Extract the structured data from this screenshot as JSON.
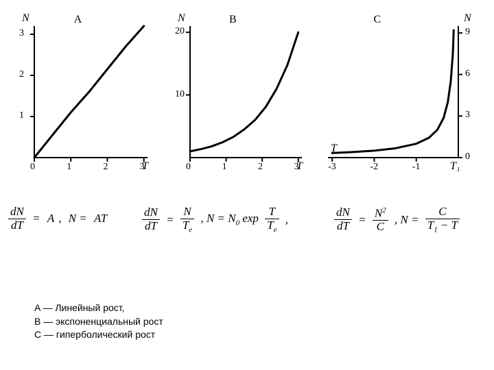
{
  "charts": {
    "A": {
      "type": "line",
      "title": "A",
      "y_axis_label": "N",
      "x_axis_label": "T",
      "x_ticks": [
        {
          "v": 0,
          "l": "0"
        },
        {
          "v": 1,
          "l": "1"
        },
        {
          "v": 2,
          "l": "2"
        },
        {
          "v": 3,
          "l": "3"
        }
      ],
      "y_ticks": [
        {
          "v": 1,
          "l": "1"
        },
        {
          "v": 2,
          "l": "2"
        },
        {
          "v": 3,
          "l": "3"
        }
      ],
      "xlim": [
        0,
        3.1
      ],
      "ylim": [
        0,
        3.2
      ],
      "curve_color": "#000000",
      "line_width": 3,
      "tick_len": 6,
      "axis_width": 2,
      "points": [
        [
          0,
          0
        ],
        [
          0.5,
          0.55
        ],
        [
          1,
          1.1
        ],
        [
          1.5,
          1.6
        ],
        [
          2,
          2.15
        ],
        [
          2.5,
          2.7
        ],
        [
          3,
          3.2
        ]
      ]
    },
    "B": {
      "type": "line",
      "title": "B",
      "y_axis_label": "N",
      "x_axis_label": "T",
      "x_ticks": [
        {
          "v": 0,
          "l": "0"
        },
        {
          "v": 1,
          "l": "1"
        },
        {
          "v": 2,
          "l": "2"
        },
        {
          "v": 3,
          "l": "3"
        }
      ],
      "y_ticks": [
        {
          "v": 10,
          "l": "10"
        },
        {
          "v": 20,
          "l": "20"
        }
      ],
      "xlim": [
        0,
        3.1
      ],
      "ylim": [
        0,
        21
      ],
      "curve_color": "#000000",
      "line_width": 3,
      "tick_len": 6,
      "axis_width": 2,
      "points": [
        [
          0,
          1
        ],
        [
          0.3,
          1.35
        ],
        [
          0.6,
          1.8
        ],
        [
          0.9,
          2.45
        ],
        [
          1.2,
          3.3
        ],
        [
          1.5,
          4.5
        ],
        [
          1.8,
          6.0
        ],
        [
          2.1,
          8.1
        ],
        [
          2.4,
          11
        ],
        [
          2.7,
          14.8
        ],
        [
          3.0,
          20
        ]
      ]
    },
    "C": {
      "type": "line",
      "title": "C",
      "y_axis_label": "N",
      "x_axis_label_top": "T",
      "x_axis_label_bottom": "T₁",
      "x_ticks": [
        {
          "v": -3,
          "l": "-3"
        },
        {
          "v": -2,
          "l": "-2"
        },
        {
          "v": -1,
          "l": "-1"
        }
      ],
      "y_ticks": [
        {
          "v": 0,
          "l": "0"
        },
        {
          "v": 3,
          "l": "3"
        },
        {
          "v": 6,
          "l": "6"
        },
        {
          "v": 9,
          "l": "9"
        }
      ],
      "xlim": [
        -3.1,
        0
      ],
      "ylim": [
        0,
        9.5
      ],
      "curve_color": "#000000",
      "line_width": 3,
      "tick_len": 6,
      "axis_width": 2,
      "points": [
        [
          -3.0,
          0.33
        ],
        [
          -2.5,
          0.4
        ],
        [
          -2.0,
          0.5
        ],
        [
          -1.5,
          0.67
        ],
        [
          -1.0,
          1.0
        ],
        [
          -0.7,
          1.43
        ],
        [
          -0.5,
          2.0
        ],
        [
          -0.35,
          2.86
        ],
        [
          -0.25,
          4.0
        ],
        [
          -0.18,
          5.5
        ],
        [
          -0.13,
          7.5
        ],
        [
          -0.11,
          9.2
        ]
      ]
    }
  },
  "equations": {
    "A": {
      "lhs_num": "dN",
      "lhs_den": "dT",
      "rhs1": "A",
      "rhs2_pre": "N =",
      "rhs2": "AT"
    },
    "B": {
      "lhs_num": "dN",
      "lhs_den": "dT",
      "mid_num": "N",
      "mid_den_pre": "T",
      "mid_den_sub": "e",
      "sep": ", N = N",
      "n0_sub": "0",
      "exp": " exp",
      "exp_num": "T",
      "exp_den_pre": "T",
      "exp_den_sub": "e",
      "trail": ","
    },
    "C": {
      "lhs_num": "dN",
      "lhs_den": "dT",
      "mid_num_pre": "N",
      "mid_num_sup": "2",
      "mid_den": "C",
      "sep": ", N =",
      "rhs_num": "C",
      "rhs_den_pre": "T",
      "rhs_den_sub": "1",
      "rhs_den_post": " − T"
    }
  },
  "legend": {
    "a": "A — Линейный рост,",
    "b": "B — экспоненциальный рост",
    "c": "C — гиперболический рост"
  },
  "colors": {
    "axis": "#000000",
    "text": "#000000",
    "bg": "#ffffff"
  },
  "font": {
    "eq_size_pt": 13,
    "tick_size_pt": 10,
    "legend_size_pt": 10
  }
}
